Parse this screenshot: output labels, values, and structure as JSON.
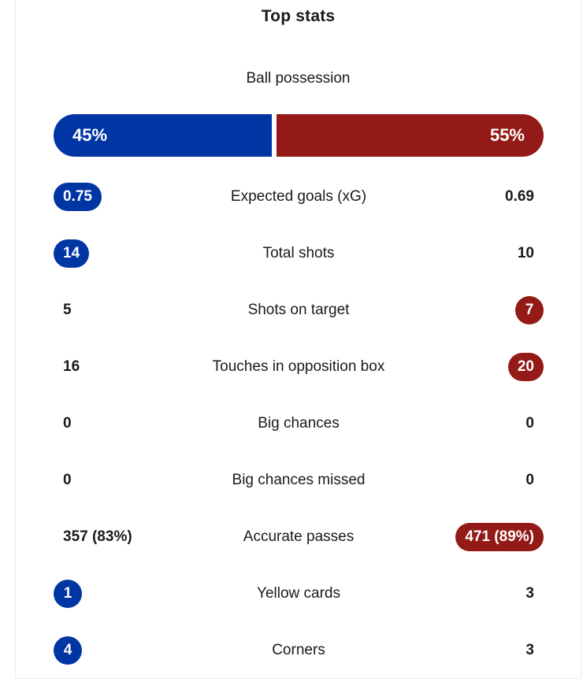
{
  "colors": {
    "home": "#0035a4",
    "away": "#931a16",
    "divider": "#ffffff"
  },
  "header": {
    "title": "Top stats"
  },
  "possession": {
    "label": "Ball possession",
    "home": "45%",
    "away": "55%",
    "home_fraction": 0.45
  },
  "stats": [
    {
      "label": "Expected goals (xG)",
      "home": "0.75",
      "away": "0.69",
      "highlight": "home"
    },
    {
      "label": "Total shots",
      "home": "14",
      "away": "10",
      "highlight": "home"
    },
    {
      "label": "Shots on target",
      "home": "5",
      "away": "7",
      "highlight": "away"
    },
    {
      "label": "Touches in opposition box",
      "home": "16",
      "away": "20",
      "highlight": "away"
    },
    {
      "label": "Big chances",
      "home": "0",
      "away": "0",
      "highlight": "none"
    },
    {
      "label": "Big chances missed",
      "home": "0",
      "away": "0",
      "highlight": "none"
    },
    {
      "label": "Accurate passes",
      "home": "357 (83%)",
      "away": "471 (89%)",
      "highlight": "away"
    },
    {
      "label": "Yellow cards",
      "home": "1",
      "away": "3",
      "highlight": "home"
    },
    {
      "label": "Corners",
      "home": "4",
      "away": "3",
      "highlight": "home"
    }
  ]
}
